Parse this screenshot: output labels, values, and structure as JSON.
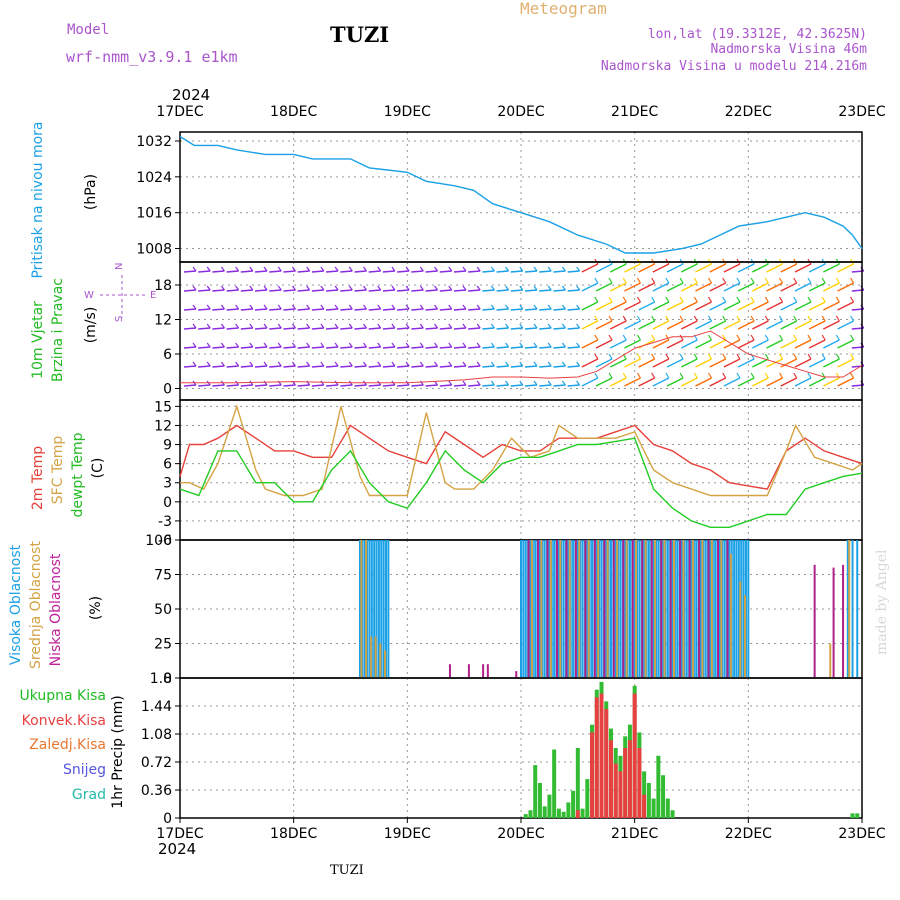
{
  "header": {
    "model_label": "Model",
    "model_name": "wrf-nmm_v3.9.1 e1km",
    "station": "TUZI",
    "meteogram": "Meteogram",
    "lonlat": "lon,lat (19.3312E, 42.3625N)",
    "elev": "Nadmorska Visina 46m",
    "elev_model": "Nadmorska Visina u modelu 214.216m",
    "year_top": "2024",
    "year_bottom": "2024",
    "footer_station": "TUZI",
    "made_by": "made by Angel"
  },
  "colors": {
    "pressure": "#1aa0e6",
    "temp2m": "#e8403a",
    "sfc": "#d4a343",
    "dewpt": "#22cc22",
    "high_cloud": "#1aa0e6",
    "mid_cloud": "#d4a343",
    "low_cloud": "#b0208a",
    "precip_total": "#33bb33",
    "precip_conv": "#e84040",
    "wind_weak": "#8a2be2"
  },
  "x_ticks": [
    "17DEC",
    "18DEC",
    "19DEC",
    "20DEC",
    "21DEC",
    "22DEC",
    "23DEC"
  ],
  "panels": {
    "pressure": {
      "labels": [
        "Pritisak na nivou mora",
        "(hPa)"
      ]
    },
    "wind": {
      "labels": [
        "10m Vjetar",
        "Brzina i Pravac",
        "(m/s)"
      ],
      "compass": [
        "N",
        "W",
        "E",
        "S"
      ]
    },
    "temp": {
      "labels": [
        "2m Temp",
        "SFC Temp",
        "dewpt Temp",
        "(C)"
      ]
    },
    "cloud": {
      "labels": [
        "Visoka Oblacnost",
        "Srednja Oblacnost",
        "Niska Oblacnost",
        "(%)"
      ]
    },
    "precip": {
      "labels": [
        "Ukupna Kisa",
        "Konvek.Kisa",
        "Zaledj.Kisa",
        "Snijeg",
        "Grad",
        "1hr Precip (mm)"
      ]
    }
  },
  "chart_data": [
    {
      "type": "line",
      "panel": "pressure",
      "xlabel": "",
      "ylabel": "(hPa)",
      "xlim": [
        0,
        144
      ],
      "ylim": [
        1005,
        1034
      ],
      "yticks": [
        "1008",
        "1016",
        "1024",
        "1032"
      ],
      "grid": true,
      "series": [
        {
          "name": "Pritisak na nivou mora",
          "x": [
            0,
            3,
            8,
            12,
            18,
            24,
            28,
            36,
            40,
            48,
            52,
            58,
            62,
            66,
            72,
            78,
            84,
            90,
            94,
            100,
            106,
            110,
            114,
            118,
            124,
            128,
            132,
            136,
            140,
            142,
            144
          ],
          "y": [
            1033,
            1031,
            1031,
            1030,
            1029,
            1029,
            1028,
            1028,
            1026,
            1025,
            1023,
            1022,
            1021,
            1018,
            1016,
            1014,
            1011,
            1009,
            1007,
            1007,
            1008,
            1009,
            1011,
            1013,
            1014,
            1015,
            1016,
            1015,
            1013,
            1011,
            1008
          ]
        }
      ]
    },
    {
      "type": "line",
      "panel": "wind",
      "xlabel": "",
      "ylabel": "(m/s)",
      "xlim": [
        0,
        144
      ],
      "ylim": [
        -2,
        22
      ],
      "yticks": [
        "0",
        "6",
        "12",
        "18"
      ],
      "grid": true,
      "series": [
        {
          "name": "",
          "x": [
            0,
            12,
            24,
            36,
            48,
            60,
            66,
            72,
            78,
            84,
            88,
            92,
            96,
            100,
            104,
            108,
            112,
            116,
            120,
            124,
            128,
            132,
            136,
            140,
            144
          ],
          "y": [
            1,
            1,
            1.2,
            1,
            1,
            1.5,
            2,
            2,
            1.8,
            2,
            3,
            5,
            7,
            8,
            9,
            9,
            10,
            8,
            6,
            5,
            4,
            3,
            2,
            2,
            4
          ]
        }
      ]
    },
    {
      "type": "line",
      "panel": "temp",
      "xlabel": "",
      "ylabel": "(C)",
      "xlim": [
        0,
        144
      ],
      "ylim": [
        -6,
        16
      ],
      "yticks": [
        "-6",
        "-3",
        "0",
        "3",
        "6",
        "9",
        "12",
        "15"
      ],
      "grid": true,
      "series": [
        {
          "name": "2m Temp",
          "x": [
            0,
            2,
            5,
            8,
            12,
            16,
            20,
            24,
            28,
            32,
            36,
            40,
            44,
            48,
            52,
            56,
            60,
            64,
            68,
            72,
            76,
            80,
            84,
            88,
            92,
            96,
            100,
            104,
            108,
            112,
            116,
            120,
            124,
            128,
            132,
            136,
            140,
            144
          ],
          "y": [
            4,
            9,
            9,
            10,
            12,
            10,
            8,
            8,
            7,
            7,
            12,
            10,
            8,
            7,
            6,
            11,
            9,
            7,
            9,
            8,
            8,
            10,
            10,
            10,
            11,
            12,
            9,
            8,
            6,
            5,
            3,
            2.5,
            2,
            8,
            10,
            8,
            7,
            6
          ]
        },
        {
          "name": "SFC Temp",
          "x": [
            0,
            2,
            5,
            8,
            12,
            16,
            18,
            22,
            26,
            30,
            34,
            38,
            40,
            44,
            48,
            52,
            56,
            58,
            62,
            66,
            70,
            74,
            78,
            80,
            84,
            88,
            92,
            96,
            100,
            104,
            108,
            112,
            116,
            120,
            124,
            128,
            130,
            134,
            138,
            142,
            144
          ],
          "y": [
            3,
            3,
            2,
            6,
            15,
            5,
            2,
            1,
            1,
            2,
            15,
            4,
            1,
            1,
            1,
            14,
            3,
            2,
            2,
            5,
            10,
            7,
            8,
            12,
            10,
            10,
            10,
            11,
            5,
            3,
            2,
            1,
            1,
            1,
            1,
            8,
            12,
            7,
            6,
            5,
            6
          ]
        },
        {
          "name": "dewpt Temp",
          "x": [
            0,
            4,
            8,
            12,
            16,
            20,
            24,
            28,
            32,
            36,
            40,
            44,
            48,
            52,
            56,
            60,
            64,
            68,
            72,
            76,
            80,
            84,
            88,
            92,
            96,
            100,
            104,
            108,
            112,
            116,
            120,
            124,
            128,
            132,
            136,
            140,
            144
          ],
          "y": [
            2,
            1,
            8,
            8,
            3,
            3,
            0,
            0,
            5,
            8,
            3,
            0,
            -1,
            3,
            8,
            5,
            3,
            6,
            7,
            7,
            8,
            9,
            9,
            9.5,
            10,
            2,
            -1,
            -3,
            -4,
            -4,
            -3,
            -2,
            -2,
            2,
            3,
            4,
            4.5
          ]
        }
      ]
    },
    {
      "type": "bar",
      "panel": "cloud",
      "xlabel": "",
      "ylabel": "(%)",
      "xlim": [
        0,
        144
      ],
      "ylim": [
        0,
        100
      ],
      "yticks": [
        "0",
        "25",
        "50",
        "75",
        "100"
      ],
      "grid": true,
      "series": [
        {
          "name": "Visoka Oblacnost",
          "x": [
            38,
            38.5,
            39,
            39.5,
            40,
            40.5,
            41,
            41.5,
            42,
            42.5,
            43,
            43.5,
            44,
            72,
            72.5,
            73,
            73.5,
            74,
            74.5,
            75,
            75.5,
            76,
            76.5,
            77,
            77.5,
            78,
            78.5,
            79,
            79.5,
            80,
            80.5,
            81,
            81.5,
            82,
            82.5,
            83,
            83.5,
            84,
            84.5,
            85,
            85.5,
            86,
            86.5,
            87,
            87.5,
            88,
            88.5,
            89,
            89.5,
            90,
            90.5,
            91,
            91.5,
            92,
            92.5,
            93,
            93.5,
            94,
            94.5,
            95,
            95.5,
            96,
            96.5,
            97,
            97.5,
            98,
            98.5,
            99,
            99.5,
            100,
            100.5,
            101,
            101.5,
            102,
            102.5,
            103,
            103.5,
            104,
            104.5,
            105,
            105.5,
            106,
            106.5,
            107,
            107.5,
            108,
            108.5,
            109,
            109.5,
            110,
            110.5,
            111,
            111.5,
            112,
            112.5,
            113,
            113.5,
            114,
            114.5,
            115,
            115.5,
            116,
            116.5,
            117,
            117.5,
            118,
            118.5,
            119,
            119.5,
            120,
            141,
            142,
            143
          ],
          "y": [
            100,
            100,
            100,
            100,
            100,
            100,
            100,
            100,
            100,
            100,
            100,
            100,
            100,
            100,
            100,
            100,
            100,
            100,
            100,
            100,
            100,
            100,
            100,
            100,
            100,
            100,
            100,
            100,
            100,
            100,
            100,
            100,
            100,
            100,
            100,
            100,
            100,
            100,
            100,
            100,
            100,
            100,
            100,
            100,
            100,
            100,
            100,
            100,
            100,
            100,
            100,
            100,
            100,
            100,
            100,
            100,
            100,
            100,
            100,
            100,
            100,
            100,
            100,
            100,
            100,
            100,
            100,
            100,
            100,
            100,
            100,
            100,
            100,
            100,
            100,
            100,
            100,
            100,
            100,
            100,
            100,
            100,
            100,
            100,
            100,
            100,
            100,
            100,
            100,
            100,
            100,
            100,
            100,
            100,
            100,
            100,
            100,
            100,
            100,
            100,
            100,
            100,
            100,
            100,
            100,
            100,
            100,
            100,
            100,
            100,
            100,
            100,
            100
          ]
        },
        {
          "name": "Srednja Oblacnost",
          "x": [
            38.3,
            39.3,
            40.3,
            41.3,
            42.3,
            43.3,
            74.3,
            76.3,
            78.3,
            80.3,
            82.3,
            84.3,
            86.3,
            88.3,
            90.3,
            92.3,
            94.3,
            96.3,
            98.3,
            100.3,
            102.3,
            104.3,
            106.3,
            108.3,
            110.3,
            112.3,
            114.3,
            116.3,
            118.3,
            119.3,
            137.3,
            141.3
          ],
          "y": [
            100,
            100,
            30,
            30,
            25,
            20,
            100,
            100,
            100,
            100,
            100,
            100,
            100,
            100,
            100,
            100,
            100,
            100,
            100,
            100,
            100,
            100,
            100,
            100,
            100,
            100,
            100,
            90,
            70,
            60,
            25,
            100
          ]
        },
        {
          "name": "Niska Oblacnost",
          "x": [
            57,
            61,
            64,
            65,
            71,
            73.6,
            75.6,
            77.6,
            79.6,
            81.6,
            83.6,
            85.6,
            87.6,
            89.6,
            91.6,
            93.6,
            95.6,
            97.6,
            99.6,
            101.6,
            103.6,
            105.6,
            107.6,
            109.6,
            111.6,
            113.6,
            115.6,
            134,
            138,
            140
          ],
          "y": [
            10,
            10,
            10,
            10,
            5,
            100,
            100,
            100,
            100,
            100,
            100,
            100,
            100,
            100,
            100,
            100,
            100,
            100,
            100,
            100,
            100,
            100,
            100,
            100,
            100,
            100,
            100,
            82,
            80,
            82
          ]
        }
      ]
    },
    {
      "type": "bar",
      "panel": "precip",
      "xlabel": "",
      "ylabel": "1hr Precip (mm)",
      "xlim": [
        0,
        144
      ],
      "ylim": [
        0,
        1.8
      ],
      "yticks": [
        "0",
        "0.36",
        "0.72",
        "1.08",
        "1.44",
        "1.8"
      ],
      "grid": true,
      "series": [
        {
          "name": "Ukupna Kisa",
          "x": [
            73,
            74,
            75,
            76,
            77,
            78,
            79,
            80,
            81,
            82,
            83,
            84,
            85,
            86,
            87,
            88,
            89,
            90,
            91,
            92,
            93,
            94,
            95,
            96,
            97,
            98,
            99,
            100,
            101,
            102,
            103,
            104,
            142,
            143
          ],
          "y": [
            0.05,
            0.1,
            0.68,
            0.45,
            0.15,
            0.3,
            0.88,
            0.12,
            0.08,
            0.2,
            0.35,
            0.9,
            0.12,
            0.5,
            1.2,
            1.65,
            1.75,
            1.5,
            1.15,
            0.9,
            0.8,
            1.05,
            1.2,
            1.7,
            1.1,
            0.6,
            0.45,
            0.25,
            0.8,
            0.55,
            0.25,
            0.1,
            0.06,
            0.06
          ]
        },
        {
          "name": "Konvek.Kisa",
          "x": [
            84,
            87,
            88,
            89,
            90,
            91,
            92,
            93,
            94,
            95,
            96,
            97,
            98
          ],
          "y": [
            0.1,
            1.1,
            1.55,
            1.6,
            1.4,
            1.0,
            0.7,
            0.6,
            0.9,
            1.0,
            1.6,
            0.9,
            0.3
          ]
        }
      ]
    }
  ]
}
